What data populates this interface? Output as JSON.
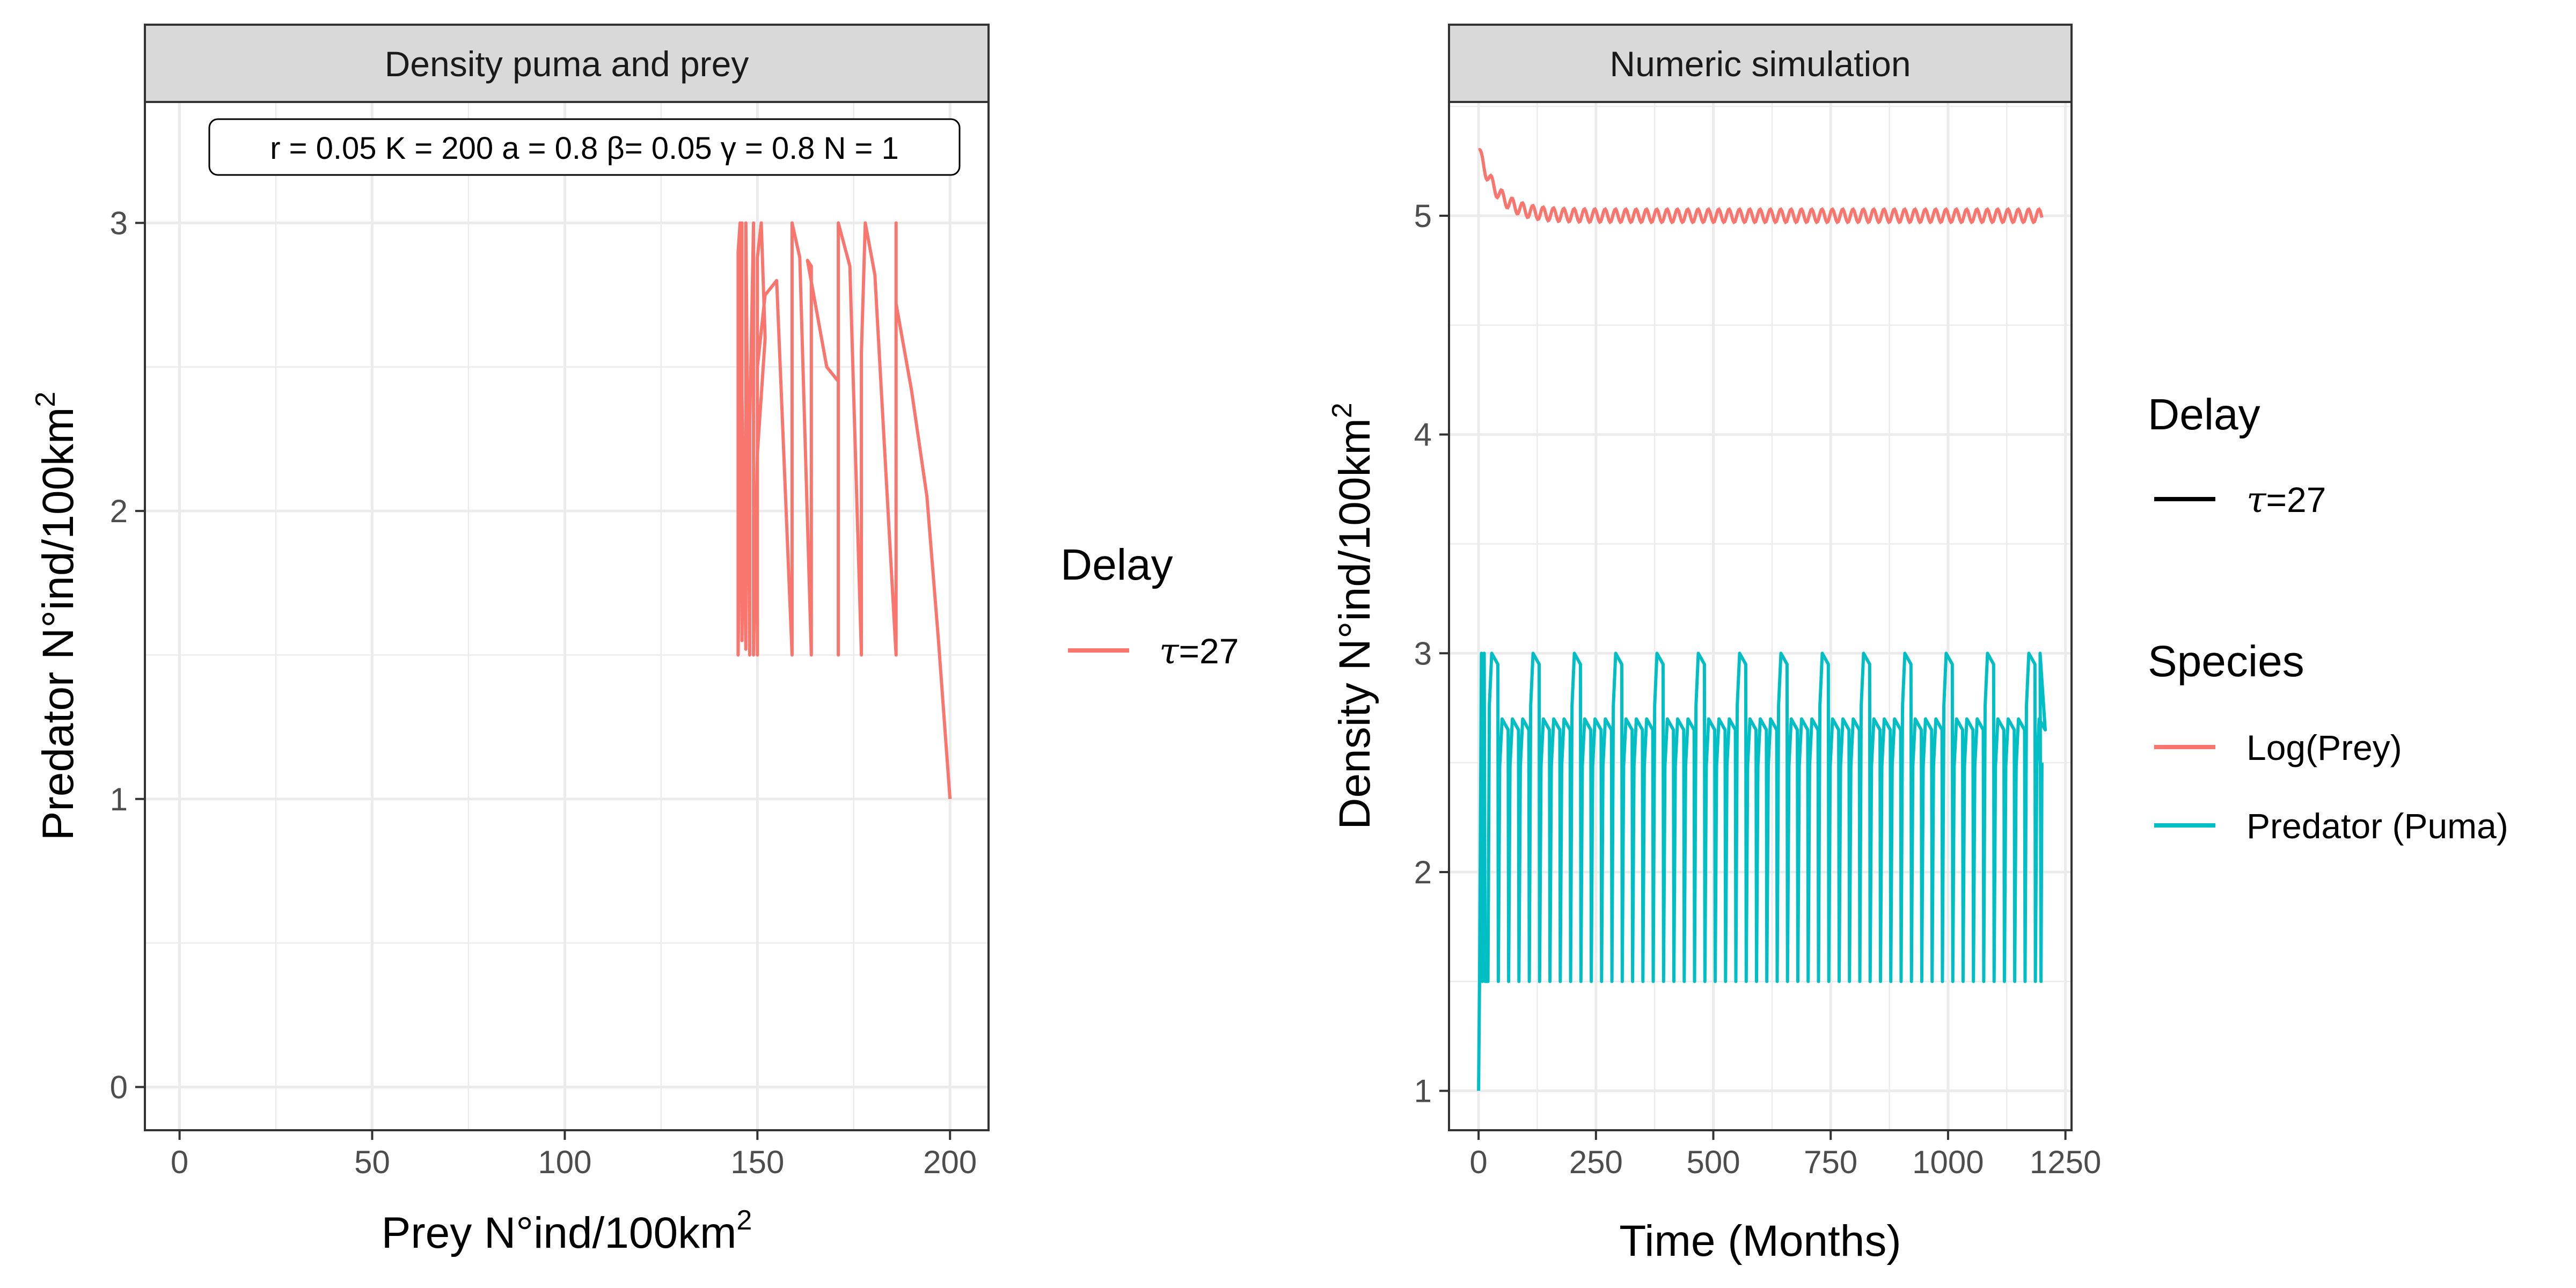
{
  "chart_data": [
    {
      "type": "line",
      "panel": "phase",
      "title": "Density puma and prey",
      "annotation": "r = 0.05 K = 200 a = 0.8 β= 0.05 γ = 0.8 N = 1",
      "xlabel": "Prey N°ind/100km",
      "xlabel_sup": "2",
      "ylabel": "Predator N°ind/100km",
      "ylabel_sup": "2",
      "xlim": [
        -9,
        210
      ],
      "ylim": [
        -0.15,
        3.42
      ],
      "xticks": [
        0,
        50,
        100,
        150,
        200
      ],
      "yticks": [
        0,
        1,
        2,
        3
      ],
      "xtick_labels": [
        "0",
        "50",
        "100",
        "150",
        "200"
      ],
      "ytick_labels": [
        "0",
        "1",
        "2",
        "3"
      ],
      "grid": true,
      "legend": {
        "title": "Delay",
        "entries": [
          {
            "label_symbol": "τ",
            "label_rest": "=27",
            "color": "#F8766D"
          }
        ]
      },
      "series": [
        {
          "name": "τ=27",
          "color": "#F8766D",
          "x": [
            200,
            197,
            194,
            190,
            186,
            186,
            186,
            180.5,
            178,
            177,
            177,
            174,
            171,
            171,
            171,
            168,
            163,
            164,
            164,
            161,
            159,
            159,
            155,
            152,
            150,
            150,
            150,
            151,
            152,
            150,
            149,
            149,
            148,
            148,
            147,
            147,
            146,
            146,
            145,
            145,
            145.5,
            145,
            145,
            145.8,
            146,
            146,
            146.5
          ],
          "y": [
            1,
            1.55,
            2.05,
            2.42,
            2.72,
            3,
            1.5,
            2.82,
            3,
            2.55,
            1.5,
            2.85,
            3,
            1.5,
            2.45,
            2.5,
            2.87,
            2.85,
            1.5,
            2.88,
            3,
            1.5,
            2.8,
            2.75,
            2.5,
            1.5,
            2.88,
            3,
            2.6,
            2.2,
            1.5,
            3,
            2.3,
            1.5,
            3,
            1.52,
            2.4,
            3,
            1.5,
            2.5,
            3,
            2.9,
            1.5,
            2.4,
            3,
            1.55,
            2.2
          ]
        }
      ]
    },
    {
      "type": "line",
      "panel": "time-series",
      "title": "Numeric simulation",
      "xlabel": "Time (Months)",
      "ylabel": "Density N°ind/100km",
      "ylabel_sup": "2",
      "xlim": [
        -63,
        1263
      ],
      "ylim": [
        0.82,
        5.52
      ],
      "xticks": [
        0,
        250,
        500,
        750,
        1000,
        1250
      ],
      "yticks": [
        1,
        2,
        3,
        4,
        5
      ],
      "xtick_labels": [
        "0",
        "250",
        "500",
        "750",
        "1000",
        "1250"
      ],
      "ytick_labels": [
        "1",
        "2",
        "3",
        "4",
        "5"
      ],
      "grid": true,
      "legend": {
        "delay_title": "Delay",
        "delay_entries": [
          {
            "label_symbol": "τ",
            "label_rest": "=27",
            "color": "#000000"
          }
        ],
        "species_title": "Species",
        "species_entries": [
          {
            "label": "Log(Prey)",
            "color": "#F8766D"
          },
          {
            "label": "Predator (Puma)",
            "color": "#00BFC4"
          }
        ]
      },
      "period": 22,
      "t_end": 1200,
      "series": [
        {
          "name": "Log(Prey)",
          "color": "#F8766D",
          "start": 5.3,
          "equilibrium": 5.0,
          "oscillation": 0.03,
          "decay_months": 40
        },
        {
          "name": "Predator (Puma)",
          "color": "#00BFC4",
          "start": 1.0,
          "min": 1.5,
          "max": 3.0,
          "typical_peak": 2.7
        }
      ]
    }
  ]
}
